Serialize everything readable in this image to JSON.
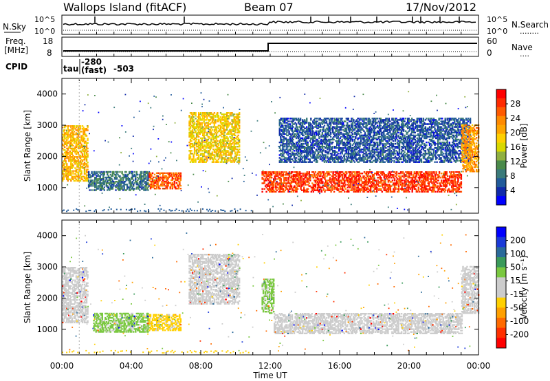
{
  "header": {
    "station": "Wallops Island (fitACF)",
    "beam": "Beam 07",
    "date": "17/Nov/2012"
  },
  "panels": {
    "nsky": {
      "label": "N.Sky",
      "ticks": [
        "10^5",
        "10^0"
      ],
      "right_ticks": [
        "10^5",
        "10^0"
      ],
      "right_label": "N.Search",
      "right_dots": "........"
    },
    "freq": {
      "label_line1": "Freq.",
      "label_line2": "[MHz]",
      "ticks": [
        "18",
        "8"
      ],
      "right_ticks": [
        "60",
        "0"
      ],
      "right_label": "Nave",
      "right_dots": "...."
    },
    "cpid": {
      "label": "CPID",
      "items": [
        "tau",
        "-280",
        "(fast)",
        "-503"
      ]
    }
  },
  "colorbars": {
    "power": {
      "title": "Power [dB]",
      "ticks": [
        "28",
        "24",
        "20",
        "16",
        "12",
        "8",
        "4"
      ],
      "colors": [
        "#ff0000",
        "#ff2a00",
        "#ff5a00",
        "#ff8a00",
        "#ffa500",
        "#ffd000",
        "#d8d800",
        "#90b040",
        "#4a8a4a",
        "#3a7a7a",
        "#205a9a",
        "#102aaa",
        "#0000ff"
      ]
    },
    "velocity": {
      "title": "Velocity [m s⁻¹]",
      "ticks": [
        "200",
        "100",
        "50",
        "15",
        "-15",
        "-50",
        "-100",
        "-200"
      ],
      "colors": [
        "#0000ff",
        "#1a3ad8",
        "#2a6a9a",
        "#3a9a5a",
        "#7ac840",
        "#cccccc",
        "#cccccc",
        "#ffd000",
        "#ffa000",
        "#ff6a00",
        "#ff3000",
        "#ff0000"
      ]
    }
  },
  "axes": {
    "ylabel": "Slant Range [km]",
    "xlabel": "Time UT",
    "yticks": [
      "4000",
      "3000",
      "2000",
      "1000"
    ],
    "xticks": [
      "00:00",
      "04:00",
      "08:00",
      "12:00",
      "16:00",
      "20:00",
      "00:00"
    ]
  },
  "chart_data": [
    {
      "type": "heatmap",
      "name": "power",
      "xlabel": "Time UT",
      "ylabel": "Slant Range [km]",
      "xlim": [
        0,
        24
      ],
      "ylim": [
        180,
        4500
      ],
      "colorbar_range": [
        0,
        32
      ],
      "regions": [
        {
          "t": [
            0.0,
            1.5
          ],
          "r": [
            1200,
            3000
          ],
          "value": 20
        },
        {
          "t": [
            1.5,
            5.0
          ],
          "r": [
            900,
            1500
          ],
          "value": 8
        },
        {
          "t": [
            5.0,
            6.8
          ],
          "r": [
            950,
            1450
          ],
          "value": 26
        },
        {
          "t": [
            7.3,
            10.2
          ],
          "r": [
            1800,
            3400
          ],
          "value": 18
        },
        {
          "t": [
            11.5,
            23.0
          ],
          "r": [
            850,
            1500
          ],
          "value": 28
        },
        {
          "t": [
            12.5,
            23.5
          ],
          "r": [
            1800,
            3200
          ],
          "value": 6
        },
        {
          "t": [
            23.0,
            24.0
          ],
          "r": [
            1500,
            3000
          ],
          "value": 22
        }
      ]
    },
    {
      "type": "heatmap",
      "name": "velocity",
      "xlabel": "Time UT",
      "ylabel": "Slant Range [km]",
      "xlim": [
        0,
        24
      ],
      "ylim": [
        180,
        4500
      ],
      "colorbar_range": [
        -200,
        200
      ],
      "regions": [
        {
          "t": [
            0.0,
            1.5
          ],
          "r": [
            1200,
            3000
          ],
          "value": 0
        },
        {
          "t": [
            1.8,
            5.0
          ],
          "r": [
            900,
            1500
          ],
          "value": 40
        },
        {
          "t": [
            5.0,
            6.8
          ],
          "r": [
            950,
            1450
          ],
          "value": -40
        },
        {
          "t": [
            7.3,
            10.2
          ],
          "r": [
            1800,
            3400
          ],
          "value": 0
        },
        {
          "t": [
            11.5,
            12.2
          ],
          "r": [
            1500,
            2600
          ],
          "value": 40
        },
        {
          "t": [
            12.2,
            23.0
          ],
          "r": [
            850,
            1500
          ],
          "value": 0
        },
        {
          "t": [
            23.0,
            24.0
          ],
          "r": [
            1500,
            3000
          ],
          "value": 0
        }
      ]
    }
  ]
}
